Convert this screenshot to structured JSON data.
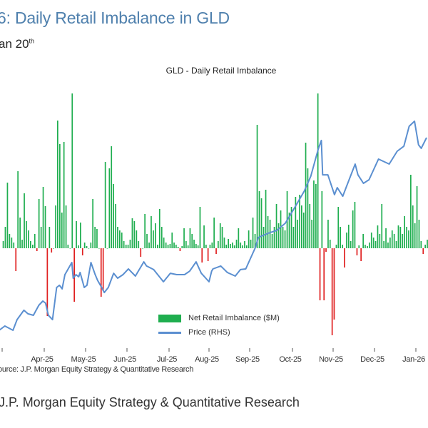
{
  "header": {
    "title": "6: Daily Retail Imbalance in GLD",
    "subtitle": "an 20",
    "subtitle_sup": "th"
  },
  "footer": {
    "source_line": "ource: J.P. Morgan Equity Strategy & Quantitative Research",
    "attribution": "J.P. Morgan Equity Strategy & Quantitative Research"
  },
  "chart_data": {
    "type": "bar+line",
    "title": "GLD - Daily Retail Imbalance",
    "x_tick_labels": [
      "Apr-25",
      "May-25",
      "Jun-25",
      "Jul-25",
      "Aug-25",
      "Sep-25",
      "Oct-25",
      "Nov-25",
      "Dec-25",
      "Jan-26"
    ],
    "legend": {
      "placement": "bottom-center",
      "entries": [
        "Net Retail Imbalance ($M)",
        "Price (RHS)"
      ]
    },
    "grid": false,
    "colors": {
      "positive": "#1fae4f",
      "negative": "#e02020",
      "price": "#5b8fd0",
      "title": "#4f80ad"
    },
    "series": [
      {
        "name": "Net Retail Imbalance ($M)",
        "type": "bar",
        "note_values_relative": true,
        "by_month": {
          "2025-03": [
            10,
            30,
            92,
            20,
            15,
            8,
            -32,
            108,
            43,
            12,
            77,
            38,
            25,
            10,
            5,
            20,
            -4,
            69,
            30,
            86
          ],
          "2025-04": [
            59,
            -95,
            30,
            -6,
            0,
            60,
            179,
            146,
            50,
            149,
            60,
            5,
            0,
            217,
            -75,
            38,
            4,
            36,
            -10,
            8
          ],
          "2025-05": [
            3,
            0,
            8,
            69,
            30,
            27,
            0,
            -68,
            -60,
            121,
            0,
            112,
            143,
            90,
            62,
            30,
            25,
            22,
            10,
            5
          ],
          "2025-06": [
            5,
            12,
            42,
            38,
            25,
            10,
            -12,
            0,
            48,
            20,
            8,
            45,
            25,
            35,
            5,
            55,
            30,
            15,
            8,
            5
          ],
          "2025-07": [
            6,
            22,
            8,
            5,
            2,
            -4,
            3,
            28,
            10,
            4,
            28,
            20,
            12,
            6,
            4,
            58,
            -20,
            32,
            5,
            -18
          ],
          "2025-08": [
            5,
            8,
            43,
            -8,
            10,
            35,
            30,
            15,
            5,
            13,
            6,
            8,
            4,
            12,
            28,
            8,
            4,
            10,
            4,
            25
          ],
          "2025-09": [
            12,
            43,
            20,
            173,
            80,
            70,
            30,
            82,
            45,
            40,
            20,
            30,
            62,
            35,
            53,
            30,
            25,
            80,
            50,
            58
          ],
          "2025-10": [
            30,
            72,
            40,
            75,
            60,
            50,
            148,
            112,
            62,
            40,
            95,
            90,
            217,
            -73,
            80,
            -73,
            -5,
            40,
            12,
            -122
          ],
          "2025-11": [
            -100,
            5,
            58,
            30,
            5,
            -27,
            22,
            33,
            10,
            53,
            65,
            -10,
            4,
            -18,
            20,
            5,
            3,
            8,
            22,
            15
          ],
          "2025-12": [
            10,
            32,
            20,
            62,
            10,
            28,
            8,
            15,
            25,
            20,
            10,
            32,
            30,
            20,
            45,
            30,
            25,
            103,
            60,
            35
          ],
          "2026-01": [
            87,
            40,
            10,
            -8,
            5,
            12,
            35,
            20,
            15,
            40,
            25,
            30,
            20
          ]
        }
      },
      {
        "name": "Price (RHS)",
        "type": "line",
        "points": [
          [
            "2025-02-27",
            270
          ],
          [
            "2025-03-03",
            273.4
          ],
          [
            "2025-03-09",
            270
          ],
          [
            "2025-03-12",
            278.4
          ],
          [
            "2025-03-17",
            285.8
          ],
          [
            "2025-03-20",
            283
          ],
          [
            "2025-03-24",
            281.8
          ],
          [
            "2025-03-28",
            289.7
          ],
          [
            "2025-03-31",
            293.1
          ],
          [
            "2025-04-02",
            291.4
          ],
          [
            "2025-04-04",
            281.8
          ],
          [
            "2025-04-07",
            278.4
          ],
          [
            "2025-04-10",
            303.8
          ],
          [
            "2025-04-12",
            305.5
          ],
          [
            "2025-04-14",
            302.7
          ],
          [
            "2025-04-16",
            313.9
          ],
          [
            "2025-04-21",
            323.5
          ],
          [
            "2025-04-22",
            311.1
          ],
          [
            "2025-04-24",
            313.9
          ],
          [
            "2025-04-26",
            312.2
          ],
          [
            "2025-04-27",
            315.6
          ],
          [
            "2025-04-30",
            303.8
          ],
          [
            "2025-05-02",
            305.5
          ],
          [
            "2025-05-05",
            323.5
          ],
          [
            "2025-05-08",
            314.4
          ],
          [
            "2025-05-10",
            309.4
          ],
          [
            "2025-05-13",
            303.8
          ],
          [
            "2025-05-15",
            299.8
          ],
          [
            "2025-05-18",
            303.8
          ],
          [
            "2025-05-22",
            315
          ],
          [
            "2025-05-25",
            311.1
          ],
          [
            "2025-05-29",
            313.9
          ],
          [
            "2025-06-02",
            318.4
          ],
          [
            "2025-06-07",
            312.8
          ],
          [
            "2025-06-13",
            324
          ],
          [
            "2025-06-15",
            320.7
          ],
          [
            "2025-06-20",
            317.9
          ],
          [
            "2025-06-27",
            308.3
          ],
          [
            "2025-07-02",
            315
          ],
          [
            "2025-07-07",
            313.9
          ],
          [
            "2025-07-13",
            313.9
          ],
          [
            "2025-07-17",
            316.7
          ],
          [
            "2025-07-22",
            324
          ],
          [
            "2025-07-26",
            315
          ],
          [
            "2025-08-01",
            308.3
          ],
          [
            "2025-08-03",
            316.7
          ],
          [
            "2025-08-04",
            318.4
          ],
          [
            "2025-08-10",
            320.7
          ],
          [
            "2025-08-15",
            315.6
          ],
          [
            "2025-08-21",
            312.8
          ],
          [
            "2025-08-25",
            317.9
          ],
          [
            "2025-08-29",
            318.4
          ],
          [
            "2025-09-05",
            335.3
          ],
          [
            "2025-09-07",
            343.2
          ],
          [
            "2025-09-14",
            346.6
          ],
          [
            "2025-09-20",
            348.8
          ],
          [
            "2025-09-26",
            354.5
          ],
          [
            "2025-10-03",
            367.4
          ],
          [
            "2025-10-10",
            379.8
          ],
          [
            "2025-10-15",
            391.6
          ],
          [
            "2025-10-19",
            406.8
          ],
          [
            "2025-10-21",
            414.1
          ],
          [
            "2025-10-23",
            419.8
          ],
          [
            "2025-10-24",
            392.7
          ],
          [
            "2025-10-28",
            392.7
          ],
          [
            "2025-11-02",
            377
          ],
          [
            "2025-11-04",
            382.6
          ],
          [
            "2025-11-08",
            375.8
          ],
          [
            "2025-11-11",
            384.3
          ],
          [
            "2025-11-17",
            401.2
          ],
          [
            "2025-11-19",
            392.7
          ],
          [
            "2025-11-23",
            386
          ],
          [
            "2025-11-27",
            388.8
          ],
          [
            "2025-12-04",
            405.1
          ],
          [
            "2025-12-12",
            401.2
          ],
          [
            "2025-12-18",
            411.3
          ],
          [
            "2025-12-23",
            415.3
          ],
          [
            "2025-12-27",
            431
          ],
          [
            "2025-12-31",
            435
          ],
          [
            "2026-01-03",
            416.4
          ],
          [
            "2026-01-05",
            413.6
          ],
          [
            "2026-01-09",
            422
          ]
        ]
      }
    ]
  }
}
